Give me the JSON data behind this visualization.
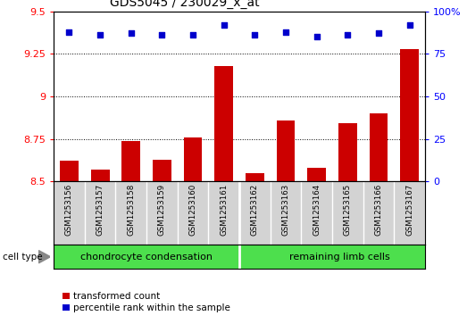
{
  "title": "GDS5045 / 230029_x_at",
  "samples": [
    "GSM1253156",
    "GSM1253157",
    "GSM1253158",
    "GSM1253159",
    "GSM1253160",
    "GSM1253161",
    "GSM1253162",
    "GSM1253163",
    "GSM1253164",
    "GSM1253165",
    "GSM1253166",
    "GSM1253167"
  ],
  "transformed_count": [
    8.62,
    8.57,
    8.74,
    8.63,
    8.76,
    9.18,
    8.55,
    8.86,
    8.58,
    8.84,
    8.9,
    9.28
  ],
  "percentile_rank": [
    88,
    86,
    87,
    86,
    86,
    92,
    86,
    88,
    85,
    86,
    87,
    92
  ],
  "cell_type_labels": [
    "chondrocyte condensation",
    "remaining limb cells"
  ],
  "n_chondro": 6,
  "n_remaining": 6,
  "bar_color": "#cc0000",
  "dot_color": "#0000cc",
  "ylim_left": [
    8.5,
    9.5
  ],
  "ylim_right": [
    0,
    100
  ],
  "yticks_left": [
    8.5,
    8.75,
    9.0,
    9.25,
    9.5
  ],
  "ytick_labels_left": [
    "8.5",
    "8.75",
    "9",
    "9.25",
    "9.5"
  ],
  "yticks_right": [
    0,
    25,
    50,
    75,
    100
  ],
  "ytick_labels_right": [
    "0",
    "25",
    "50",
    "75",
    "100%"
  ],
  "grid_values": [
    8.75,
    9.0,
    9.25
  ],
  "sample_bg_color": "#d3d3d3",
  "chondro_color": "#4ddf4d",
  "remaining_color": "#4ddf4d",
  "legend_labels": [
    "transformed count",
    "percentile rank within the sample"
  ]
}
